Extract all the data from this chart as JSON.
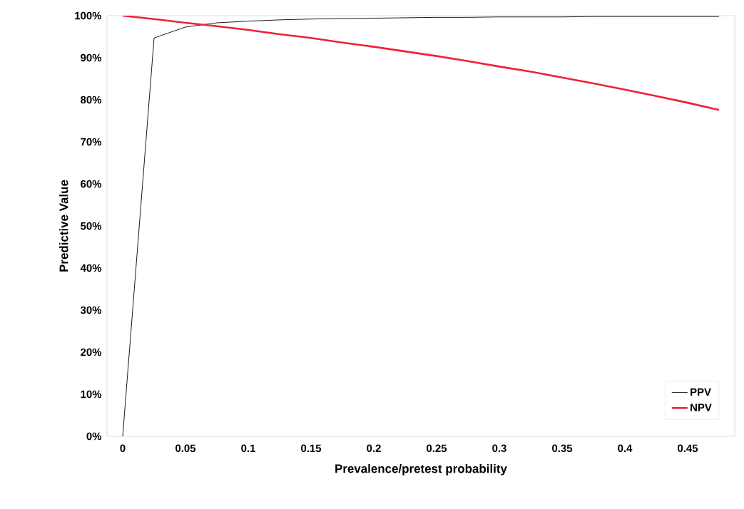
{
  "chart_data": {
    "type": "line",
    "xlabel": "Prevalence/pretest probability",
    "ylabel": "Predictive Value",
    "x": [
      0,
      0.025,
      0.05,
      0.075,
      0.1,
      0.125,
      0.15,
      0.175,
      0.2,
      0.225,
      0.25,
      0.275,
      0.3,
      0.325,
      0.35,
      0.375,
      0.4,
      0.425,
      0.45,
      0.475
    ],
    "series": [
      {
        "name": "PPV",
        "color": "#000000",
        "values": [
          0,
          94.7,
          97.3,
          98.3,
          98.7,
          99.0,
          99.2,
          99.3,
          99.4,
          99.5,
          99.6,
          99.6,
          99.7,
          99.7,
          99.7,
          99.8,
          99.8,
          99.8,
          99.8,
          99.8
        ]
      },
      {
        "name": "NPV",
        "color": "#ee2233",
        "values": [
          100,
          99.2,
          98.3,
          97.5,
          96.6,
          95.6,
          94.7,
          93.6,
          92.6,
          91.5,
          90.4,
          89.2,
          87.9,
          86.7,
          85.3,
          83.9,
          82.4,
          80.9,
          79.3,
          77.6
        ]
      }
    ],
    "xlim": [
      -0.0125,
      0.4875
    ],
    "ylim": [
      0,
      100
    ],
    "xticks": [
      0,
      0.05,
      0.1,
      0.15,
      0.2,
      0.25,
      0.3,
      0.35,
      0.4,
      0.45
    ],
    "yticks": [
      {
        "value": 0,
        "label": "0%"
      },
      {
        "value": 10,
        "label": "10%"
      },
      {
        "value": 20,
        "label": "20%"
      },
      {
        "value": 30,
        "label": "30%"
      },
      {
        "value": 40,
        "label": "40%"
      },
      {
        "value": 50,
        "label": "50%"
      },
      {
        "value": 60,
        "label": "60%"
      },
      {
        "value": 70,
        "label": "70%"
      },
      {
        "value": 80,
        "label": "80%"
      },
      {
        "value": 90,
        "label": "90%"
      },
      {
        "value": 100,
        "label": "100%"
      }
    ],
    "legend": "bottom right",
    "grid": false,
    "marker": "none",
    "line_style": "solid"
  }
}
